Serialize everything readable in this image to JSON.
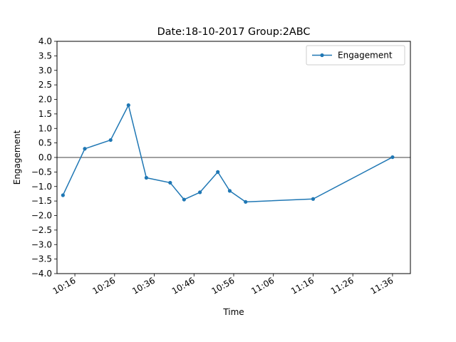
{
  "chart_data": {
    "type": "line",
    "title": "Date:18-10-2017 Group:2ABC",
    "xlabel": "Time",
    "ylabel": "Engagement",
    "ylim": [
      -4.0,
      4.0
    ],
    "yticks": [
      "−4.0",
      "−3.5",
      "−3.0",
      "−2.5",
      "−2.0",
      "−1.5",
      "−1.0",
      "−0.5",
      "0.0",
      "0.5",
      "1.0",
      "1.5",
      "2.0",
      "2.5",
      "3.0",
      "3.5",
      "4.0"
    ],
    "xticks": [
      "10:16",
      "10:26",
      "10:36",
      "10:46",
      "10:56",
      "11:06",
      "11:16",
      "11:26",
      "11:36"
    ],
    "xlim": [
      "10:11:30",
      "11:40:30"
    ],
    "legend_position": "upper right",
    "reference_line_y": 0.0,
    "grid": false,
    "series": [
      {
        "name": "Engagement",
        "color": "#1f77b4",
        "marker": "circle",
        "x": [
          "10:13",
          "10:18:30",
          "10:25",
          "10:29:30",
          "10:34",
          "10:40",
          "10:43:30",
          "10:47:30",
          "10:52",
          "10:55",
          "10:59",
          "11:16",
          "11:36"
        ],
        "y": [
          -1.3,
          0.3,
          0.6,
          1.8,
          -0.7,
          -0.87,
          -1.45,
          -1.2,
          -0.5,
          -1.15,
          -1.53,
          -1.43,
          0.01
        ]
      }
    ]
  }
}
